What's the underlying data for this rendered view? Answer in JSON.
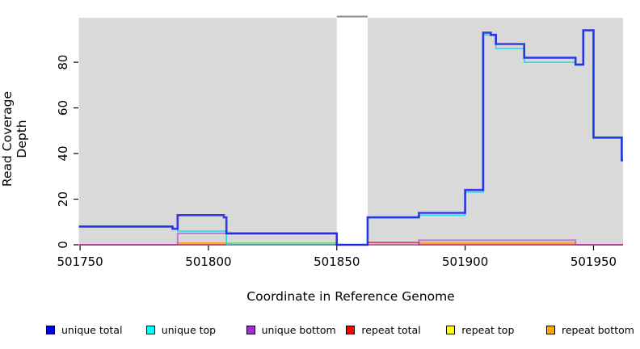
{
  "figure": {
    "background": "#ffffff",
    "plot_background": "#d9d9d9",
    "gap_band_color": "#ffffff",
    "gap_band_cap_color": "#8a8a8a"
  },
  "chart_data": {
    "type": "line",
    "step": true,
    "title": "",
    "xlabel": "Coordinate in Reference Genome",
    "ylabel": "Read Coverage Depth",
    "xlim": [
      501749.5,
      501961.5
    ],
    "ylim": [
      0,
      99.5
    ],
    "x_ticks": [
      501750,
      501800,
      501850,
      501900,
      501950
    ],
    "y_ticks": [
      0,
      20,
      40,
      60,
      80
    ],
    "grid": false,
    "legend_position": "bottom",
    "gap_region": {
      "x_start": 501850,
      "x_end": 501862
    },
    "series": [
      {
        "name": "unique total",
        "legend_color": "#0000ee",
        "line_color": "#0f0fe8",
        "opacity": 0.8,
        "width": 2.6,
        "steps": [
          [
            501749.5,
            8
          ],
          [
            501786,
            7
          ],
          [
            501788,
            13
          ],
          [
            501806,
            12
          ],
          [
            501807,
            5
          ],
          [
            501850,
            0
          ],
          [
            501862,
            12
          ],
          [
            501882,
            14
          ],
          [
            501900,
            24
          ],
          [
            501907,
            93
          ],
          [
            501910,
            92
          ],
          [
            501912,
            88
          ],
          [
            501923,
            82
          ],
          [
            501943,
            79
          ],
          [
            501946,
            94
          ],
          [
            501950,
            47
          ],
          [
            501961,
            37
          ]
        ],
        "x_end": 501961.5
      },
      {
        "name": "unique top",
        "legend_color": "#00ffff",
        "line_color": "#00d8e2",
        "opacity": 0.8,
        "width": 1.6,
        "steps": [
          [
            501749.5,
            8
          ],
          [
            501786,
            7
          ],
          [
            501788,
            6
          ],
          [
            501807,
            0
          ],
          [
            501862,
            12
          ],
          [
            501882,
            13
          ],
          [
            501900,
            23
          ],
          [
            501907,
            92
          ],
          [
            501912,
            86
          ],
          [
            501923,
            80
          ],
          [
            501943,
            79
          ],
          [
            501946,
            94
          ],
          [
            501950,
            47
          ],
          [
            501961,
            37
          ]
        ],
        "x_end": 501961.5
      },
      {
        "name": "unique bottom",
        "legend_color": "#9933cc",
        "line_color": "#a040d0",
        "opacity": 0.6,
        "width": 2,
        "steps": [
          [
            501749.5,
            0
          ],
          [
            501788,
            5
          ],
          [
            501850,
            0
          ],
          [
            501882,
            2
          ],
          [
            501943,
            0
          ]
        ],
        "x_end": 501961.5
      },
      {
        "name": "repeat total",
        "legend_color": "#ff0000",
        "line_color": "#e01040",
        "opacity": 0.75,
        "width": 1.8,
        "steps": [
          [
            501749.5,
            0
          ],
          [
            501862,
            1
          ],
          [
            501882,
            0
          ]
        ],
        "x_end": 501961.5
      },
      {
        "name": "repeat top",
        "legend_color": "#ffff00",
        "line_color": "#55cc55",
        "opacity": 0.8,
        "width": 1.6,
        "steps": [
          [
            501749.5,
            0
          ],
          [
            501807,
            0.7
          ],
          [
            501850,
            0
          ]
        ],
        "x_end": 501961.5
      },
      {
        "name": "repeat bottom",
        "legend_color": "#ffa500",
        "line_color": "#ff9900",
        "opacity": 0.9,
        "width": 1.8,
        "steps": [
          [
            501749.5,
            0
          ],
          [
            501788,
            0.7
          ],
          [
            501807,
            0
          ],
          [
            501882,
            0.7
          ],
          [
            501943,
            0
          ]
        ],
        "x_end": 501961.5
      }
    ]
  }
}
